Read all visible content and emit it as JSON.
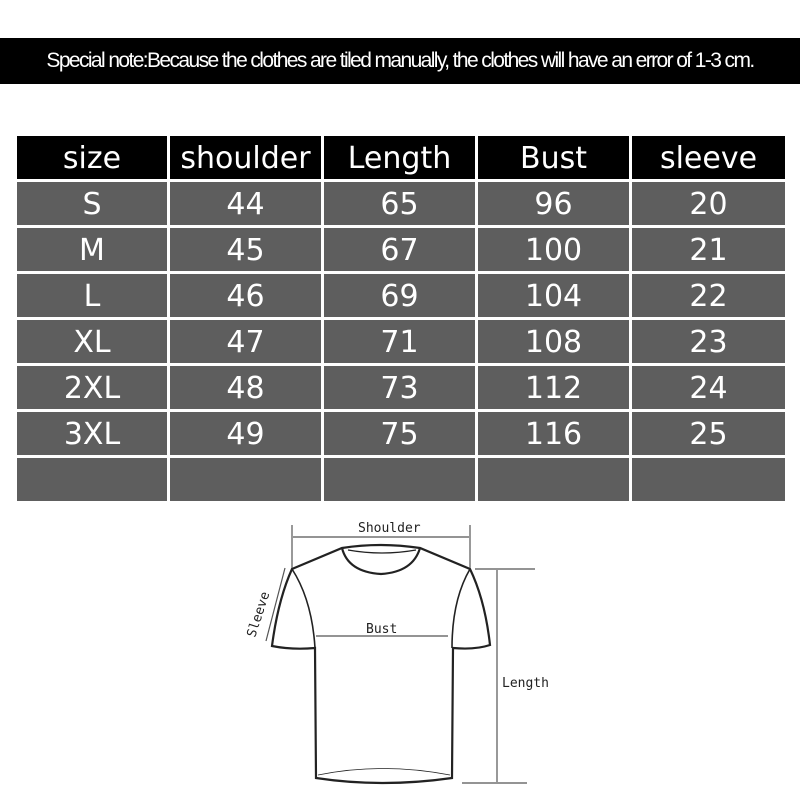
{
  "note": "Special note:Because the clothes are tiled manually, the clothes will have an error of 1-3 cm.",
  "table": {
    "headers": [
      "size",
      "shoulder",
      "Length",
      "Bust",
      "sleeve"
    ],
    "rows": [
      [
        "S",
        "44",
        "65",
        "96",
        "20"
      ],
      [
        "M",
        "45",
        "67",
        "100",
        "21"
      ],
      [
        "L",
        "46",
        "69",
        "104",
        "22"
      ],
      [
        "XL",
        "47",
        "71",
        "108",
        "23"
      ],
      [
        "2XL",
        "48",
        "73",
        "112",
        "24"
      ],
      [
        "3XL",
        "49",
        "75",
        "116",
        "25"
      ],
      [
        "",
        "",
        "",
        "",
        ""
      ]
    ]
  },
  "diagram": {
    "shoulder": "Shoulder",
    "sleeve": "Sleeve",
    "bust": "Bust",
    "length": "Length"
  }
}
